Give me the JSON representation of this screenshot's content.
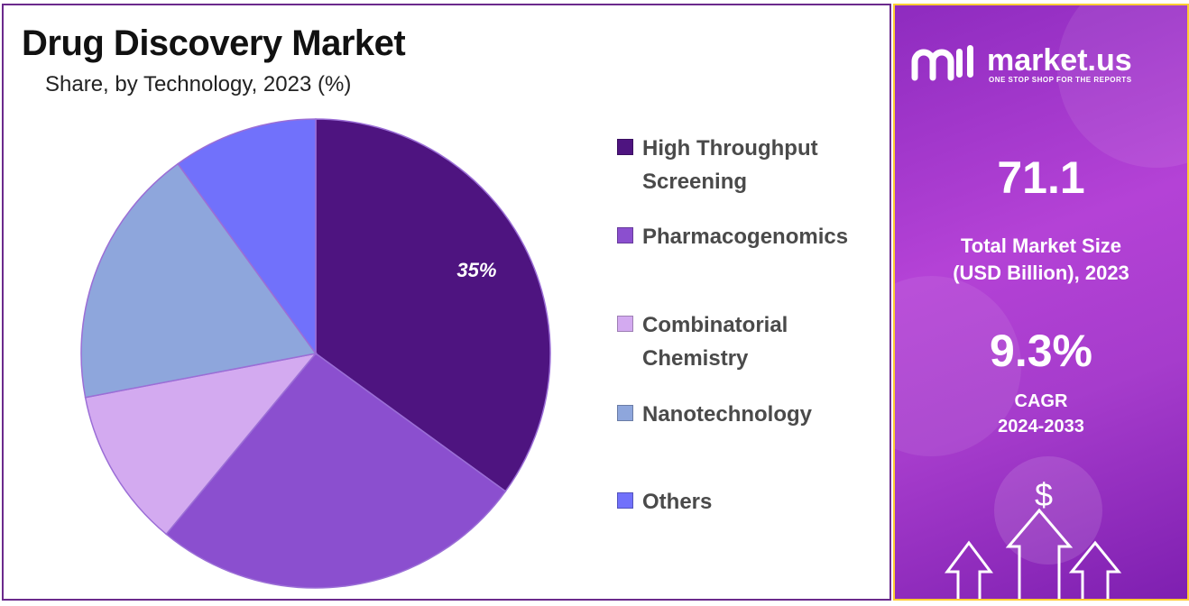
{
  "header": {
    "title": "Drug Discovery Market",
    "subtitle": "Share, by Technology, 2023 (%)"
  },
  "chart_data": {
    "type": "pie",
    "title": "Drug Discovery Market",
    "subtitle": "Share, by Technology, 2023 (%)",
    "slices": [
      {
        "name": "High Throughput Screening",
        "value": 35,
        "label": "35%",
        "color": "#4e1480"
      },
      {
        "name": "Pharmacogenomics",
        "value": 26,
        "label": "",
        "color": "#8b4fcf"
      },
      {
        "name": "Combinatorial Chemistry",
        "value": 11,
        "label": "",
        "color": "#d3aaf0"
      },
      {
        "name": "Nanotechnology",
        "value": 18,
        "label": "",
        "color": "#8ea6dc"
      },
      {
        "name": "Others",
        "value": 10,
        "label": "",
        "color": "#7171fb"
      }
    ],
    "legend_position": "right",
    "start_angle_deg": 0,
    "direction": "clockwise"
  },
  "legend": {
    "items": [
      {
        "line1": "High Throughput",
        "line2": "Screening"
      },
      {
        "line1": "Pharmacogenomics",
        "line2": ""
      },
      {
        "line1": "Combinatorial",
        "line2": "Chemistry"
      },
      {
        "line1": "Nanotechnology",
        "line2": ""
      },
      {
        "line1": "Others",
        "line2": ""
      }
    ]
  },
  "sidebar": {
    "brand_name": "market.us",
    "brand_tagline": "ONE STOP SHOP FOR THE REPORTS",
    "market_size_value": "71.1",
    "market_size_caption_line1": "Total Market Size",
    "market_size_caption_line2": "(USD Billion), 2023",
    "cagr_value": "9.3%",
    "cagr_caption_line1": "CAGR",
    "cagr_caption_line2": "2024-2033",
    "dollar_symbol": "$",
    "accent_color": "#ffcc33"
  }
}
